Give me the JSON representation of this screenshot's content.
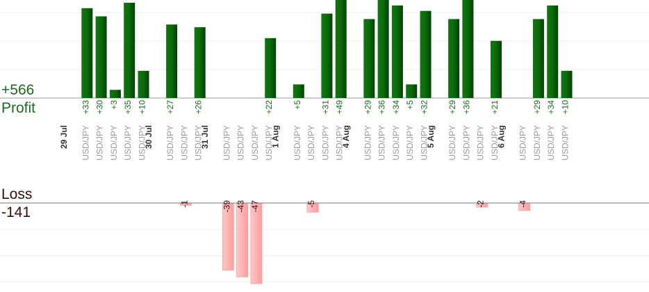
{
  "summary": {
    "profit_total": "+566",
    "profit_label": "Profit",
    "loss_label": "Loss",
    "loss_total": "-141"
  },
  "colors": {
    "profit": "#0a6e0a",
    "loss": "#ffb0b0",
    "profit_text": "#1a6b1a",
    "loss_text": "#3a0a0a",
    "axis_text": "#9a9a9a"
  },
  "chart_data": {
    "type": "bar",
    "ylim_profit": [
      0,
      36
    ],
    "ylim_loss": [
      0,
      47
    ],
    "grid": true,
    "groups": [
      {
        "date": "29 Jul",
        "trades": [
          {
            "pair": "USD/JPY",
            "value": 33
          },
          {
            "pair": "USD/JPY",
            "value": 30
          },
          {
            "pair": "USD/JPY",
            "value": 3
          },
          {
            "pair": "USD/JPY",
            "value": 35
          },
          {
            "pair": "USD/JPY",
            "value": 10
          }
        ]
      },
      {
        "date": "30 Jul",
        "trades": [
          {
            "pair": "USD/JPY",
            "value": 27
          },
          {
            "pair": "USD/JPY",
            "value": -1
          },
          {
            "pair": "USD/JPY",
            "value": 26
          }
        ]
      },
      {
        "date": "31 Jul",
        "trades": [
          {
            "pair": "USD/JPY",
            "value": -39
          },
          {
            "pair": "USD/JPY",
            "value": -43
          },
          {
            "pair": "USD/JPY",
            "value": -47
          },
          {
            "pair": "USD/JPY",
            "value": 22
          }
        ]
      },
      {
        "date": "1 Aug",
        "trades": [
          {
            "pair": "USD/JPY",
            "value": 5
          },
          {
            "pair": "USD/JPY",
            "value": -5
          },
          {
            "pair": "USD/JPY",
            "value": 31
          },
          {
            "pair": "USD/JPY",
            "value": 49
          }
        ]
      },
      {
        "date": "4 Aug",
        "trades": [
          {
            "pair": "USD/JPY",
            "value": 29
          },
          {
            "pair": "USD/JPY",
            "value": 36
          },
          {
            "pair": "USD/JPY",
            "value": 34
          },
          {
            "pair": "USD/JPY",
            "value": 5
          },
          {
            "pair": "USD/JPY",
            "value": 32
          }
        ]
      },
      {
        "date": "5 Aug",
        "trades": [
          {
            "pair": "USD/JPY",
            "value": 29
          },
          {
            "pair": "USD/JPY",
            "value": 36
          },
          {
            "pair": "USD/JPY",
            "value": -2
          },
          {
            "pair": "USD/JPY",
            "value": 21
          }
        ]
      },
      {
        "date": "6 Aug",
        "trades": [
          {
            "pair": "USD/JPY",
            "value": -4
          },
          {
            "pair": "USD/JPY",
            "value": 29
          },
          {
            "pair": "USD/JPY",
            "value": 34
          },
          {
            "pair": "USD/JPY",
            "value": 10
          }
        ]
      }
    ]
  }
}
